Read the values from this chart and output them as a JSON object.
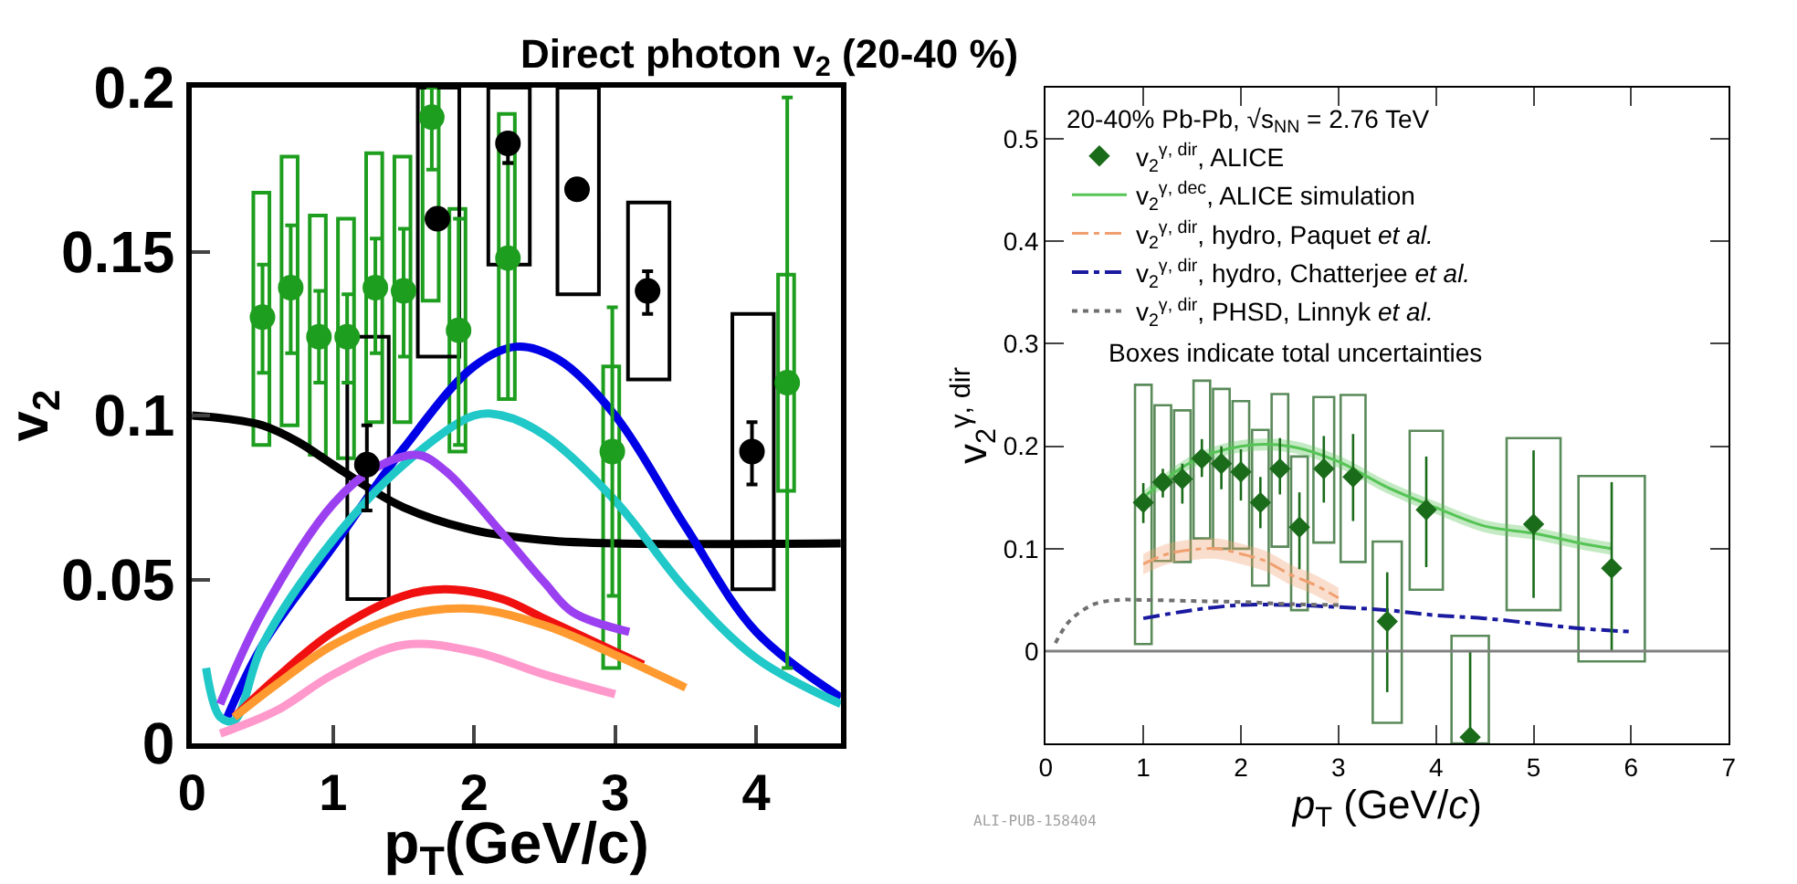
{
  "chart_data": [
    {
      "type": "scatter",
      "title": "Direct photon v$_{2}$ (20-40 %)",
      "xlabel": "p$_{T}$(GeV/c)",
      "ylabel": "v$_{2}$",
      "xlim": [
        0,
        4.6
      ],
      "ylim": [
        0,
        0.2
      ],
      "xticks": [
        0,
        1,
        2,
        3,
        4
      ],
      "yticks": [
        0,
        0.05,
        0.1,
        0.15,
        0.2
      ],
      "legend": false,
      "series": [
        {
          "type": "bar",
          "color": "#1e9e1e",
          "x": [
            0.5,
            0.7,
            0.9,
            1.1,
            1.3,
            1.5,
            1.7,
            1.89,
            2.24,
            2.98,
            4.22
          ],
          "base": [
            0.091,
            0.097,
            0.088,
            0.087,
            0.098,
            0.098,
            0.135,
            0.089,
            0.105,
            0.023,
            0.077
          ],
          "values": [
            0.077,
            0.082,
            0.073,
            0.073,
            0.082,
            0.081,
            0.065,
            0.074,
            0.087,
            0.092,
            0.066
          ]
        },
        {
          "type": "bar",
          "color": "#000000",
          "x": [
            1.24,
            1.74,
            2.24,
            2.73,
            3.23,
            3.97
          ],
          "base": [
            0.044,
            0.118,
            0.146,
            0.137,
            0.111,
            0.047
          ],
          "values": [
            0.08,
            0.082,
            0.054,
            0.063,
            0.054,
            0.084
          ]
        },
        {
          "type": "line",
          "color": "#000000",
          "x": [
            0,
            0.25,
            0.5,
            0.75,
            1,
            1.25,
            1.5,
            2,
            2.5,
            3,
            4.6
          ],
          "values": [
            0.1,
            0.099,
            0.097,
            0.092,
            0.085,
            0.078,
            0.072,
            0.065,
            0.062,
            0.061,
            0.061
          ]
        },
        {
          "type": "line",
          "color": "#0000e6",
          "x": [
            0.25,
            0.5,
            1,
            1.5,
            2,
            2.3,
            2.6,
            3,
            3.5,
            4,
            4.6
          ],
          "values": [
            0.008,
            0.03,
            0.06,
            0.09,
            0.115,
            0.121,
            0.117,
            0.1,
            0.066,
            0.034,
            0.014
          ]
        },
        {
          "type": "line",
          "color": "#20c8c8",
          "x": [
            0.1,
            0.2,
            0.3,
            0.5,
            1,
            1.5,
            2,
            2.2,
            2.5,
            3,
            3.5,
            4,
            4.6
          ],
          "values": [
            0.023,
            0.008,
            0.007,
            0.03,
            0.062,
            0.085,
            0.1,
            0.1,
            0.094,
            0.074,
            0.047,
            0.026,
            0.012
          ]
        },
        {
          "type": "line",
          "color": "#9b40f0",
          "x": [
            0.2,
            0.5,
            1,
            1.3,
            1.6,
            1.8,
            2.2,
            2.5,
            2.7,
            3.1
          ],
          "values": [
            0.012,
            0.04,
            0.073,
            0.084,
            0.088,
            0.083,
            0.064,
            0.049,
            0.04,
            0.034
          ]
        },
        {
          "type": "line",
          "color": "#f01010",
          "x": [
            0.3,
            0.6,
            1,
            1.5,
            1.8,
            2.2,
            2.5,
            3,
            3.2
          ],
          "values": [
            0.008,
            0.02,
            0.034,
            0.045,
            0.047,
            0.044,
            0.038,
            0.028,
            0.024
          ]
        },
        {
          "type": "line",
          "color": "#ff9a30",
          "x": [
            0.3,
            0.6,
            1,
            1.5,
            2,
            2.5,
            3,
            3.5
          ],
          "values": [
            0.008,
            0.018,
            0.03,
            0.039,
            0.041,
            0.036,
            0.027,
            0.017
          ]
        },
        {
          "type": "line",
          "color": "#ff99cc",
          "x": [
            0.2,
            0.6,
            1,
            1.5,
            2,
            2.5,
            3
          ],
          "values": [
            0.003,
            0.01,
            0.021,
            0.03,
            0.028,
            0.021,
            0.015
          ]
        },
        {
          "marker": "circle",
          "color": "#1e9e1e",
          "x": [
            0.5,
            0.7,
            0.9,
            1.1,
            1.3,
            1.5,
            1.7,
            1.89,
            2.24,
            2.98,
            4.22
          ],
          "values": [
            0.13,
            0.139,
            0.124,
            0.124,
            0.139,
            0.138,
            0.191,
            0.126,
            0.148,
            0.089,
            0.11
          ],
          "errors": [
            [
              0.113,
              0.146
            ],
            [
              0.119,
              0.158
            ],
            [
              0.11,
              0.138
            ],
            [
              0.11,
              0.137
            ],
            [
              0.119,
              0.154
            ],
            [
              0.118,
              0.157
            ],
            [
              0.175,
              0.2
            ],
            [
              0.091,
              0.16
            ],
            [
              0.105,
              0.177
            ],
            [
              0.045,
              0.133
            ],
            [
              0.023,
              0.197
            ]
          ]
        },
        {
          "marker": "circle",
          "color": "#000000",
          "x": [
            1.24,
            1.74,
            2.24,
            2.73,
            3.23,
            3.97
          ],
          "values": [
            0.085,
            0.16,
            0.183,
            0.169,
            0.138,
            0.089
          ],
          "errors": [
            [
              0.071,
              0.097
            ],
            null,
            [
              0.177,
              0.185
            ],
            null,
            [
              0.131,
              0.144
            ],
            [
              0.079,
              0.098
            ]
          ]
        }
      ]
    },
    {
      "type": "scatter",
      "xlabel": "p$_{T}$ (GeV/c)",
      "ylabel": "v$_{2}$$^{γ, dir}$",
      "legend_title": "20-40% Pb-Pb, √s$_{NN}$ = 2.76 TeV",
      "annotations": [
        "Boxes indicate total uncertainties",
        "ALI-PUB-158404"
      ],
      "xlim": [
        0,
        7
      ],
      "ylim": [
        -0.09,
        0.55
      ],
      "xticks": [
        0,
        1,
        2,
        3,
        4,
        5,
        6,
        7
      ],
      "yticks": [
        0,
        0.1,
        0.2,
        0.3,
        0.4,
        0.5
      ],
      "legend": "top left",
      "ref_lines": [
        {
          "axis": "y",
          "value": 0,
          "color": "#808080"
        }
      ],
      "series": [
        {
          "type": "bar",
          "color": "#5a8a5a",
          "x": [
            1.0,
            1.2,
            1.4,
            1.6,
            1.8,
            2.0,
            2.2,
            2.4,
            2.6,
            2.85,
            3.15,
            3.5,
            3.9,
            4.35,
            5.0,
            5.8
          ],
          "base": [
            0.007,
            0.088,
            0.087,
            0.11,
            0.1,
            0.1,
            0.064,
            0.102,
            0.04,
            0.106,
            0.087,
            -0.07,
            0.06,
            -0.09,
            0.04,
            -0.01
          ],
          "values": [
            0.253,
            0.152,
            0.148,
            0.154,
            0.156,
            0.144,
            0.152,
            0.149,
            0.15,
            0.142,
            0.163,
            0.177,
            0.155,
            0.105,
            0.168,
            0.181
          ]
        },
        {
          "type": "line",
          "name": "v$_{2}$$^{γ, dec}$, ALICE simulation",
          "color": "#55c455",
          "x": [
            1,
            1.5,
            2,
            2.5,
            3,
            3.5,
            4,
            4.5,
            5,
            5.5,
            5.8
          ],
          "values": [
            0.15,
            0.185,
            0.2,
            0.2,
            0.185,
            0.16,
            0.14,
            0.122,
            0.115,
            0.105,
            0.1
          ],
          "lower": [
            0.144,
            0.179,
            0.194,
            0.194,
            0.179,
            0.154,
            0.134,
            0.116,
            0.109,
            0.099,
            0.094
          ],
          "upper": [
            0.156,
            0.191,
            0.206,
            0.206,
            0.191,
            0.166,
            0.146,
            0.128,
            0.121,
            0.111,
            0.106
          ]
        },
        {
          "type": "line",
          "name": "v$_{2}$$^{γ, dir}$, hydro, Paquet et al.",
          "color": "#f0a070",
          "line_style": "dashed",
          "x": [
            1,
            1.25,
            1.5,
            1.75,
            2,
            2.25,
            2.5,
            2.75,
            3
          ],
          "values": [
            0.085,
            0.095,
            0.099,
            0.1,
            0.095,
            0.088,
            0.075,
            0.065,
            0.052
          ],
          "lower": [
            0.075,
            0.085,
            0.089,
            0.09,
            0.085,
            0.078,
            0.065,
            0.055,
            0.042
          ],
          "upper": [
            0.095,
            0.105,
            0.109,
            0.11,
            0.105,
            0.098,
            0.085,
            0.075,
            0.062
          ]
        },
        {
          "type": "line",
          "name": "v$_{2}$$^{γ, dir}$, hydro, Chatterjee et al.",
          "color": "#1a1aa0",
          "line_style": "dashed",
          "x": [
            1,
            1.5,
            2,
            2.5,
            3,
            3.5,
            4,
            4.5,
            5,
            5.5,
            6
          ],
          "values": [
            0.032,
            0.04,
            0.045,
            0.045,
            0.043,
            0.04,
            0.035,
            0.032,
            0.027,
            0.022,
            0.019
          ]
        },
        {
          "type": "line",
          "name": "v$_{2}$$^{γ, dir}$, PHSD, Linnyk et al.",
          "color": "#707070",
          "line_style": "dotted",
          "x": [
            0.1,
            0.25,
            0.5,
            0.75,
            1,
            1.5,
            2,
            2.5,
            3
          ],
          "values": [
            0.008,
            0.03,
            0.046,
            0.05,
            0.05,
            0.049,
            0.048,
            0.046,
            0.045
          ]
        },
        {
          "marker": "diamond",
          "name": "v$_{2}$$^{γ, dir}$, ALICE",
          "color": "#1a6b1a",
          "x": [
            1.0,
            1.2,
            1.4,
            1.6,
            1.8,
            2.0,
            2.2,
            2.4,
            2.6,
            2.85,
            3.15,
            3.5,
            3.9,
            4.35,
            5.0,
            5.8
          ],
          "values": [
            0.145,
            0.165,
            0.168,
            0.188,
            0.183,
            0.175,
            0.145,
            0.178,
            0.121,
            0.178,
            0.17,
            0.029,
            0.138,
            -0.084,
            0.124,
            0.081
          ],
          "errors": [
            [
              0.125,
              0.164
            ],
            [
              0.15,
              0.178
            ],
            [
              0.144,
              0.183
            ],
            [
              0.17,
              0.207
            ],
            [
              0.158,
              0.2
            ],
            [
              0.147,
              0.197
            ],
            [
              0.12,
              0.17
            ],
            [
              0.153,
              0.208
            ],
            [
              0.08,
              0.155
            ],
            [
              0.145,
              0.21
            ],
            [
              0.127,
              0.212
            ],
            [
              -0.04,
              0.077
            ],
            [
              0.082,
              0.19
            ],
            [
              -0.09,
              0
            ],
            [
              0.052,
              0.196
            ],
            [
              0,
              0.165
            ]
          ]
        }
      ]
    }
  ]
}
